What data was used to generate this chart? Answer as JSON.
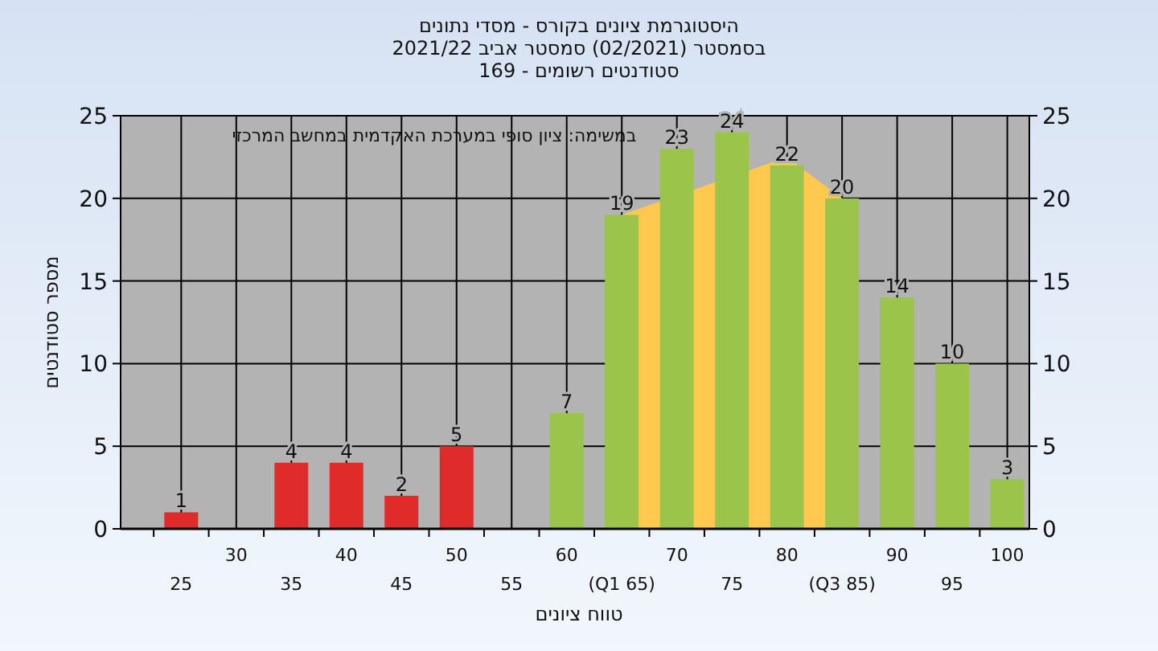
{
  "chart_data": {
    "type": "bar",
    "title": "היסטוגרמת ציונים בקורס - מסדי נתונים",
    "subtitle": "בסמסטר (02/2021) סמסטר אביב 2021/22",
    "annotations": [
      "סטודנטים רשומים - 169",
      "במשימה: ציון סופי במערכת האקדמית במחשב המרכזי"
    ],
    "xlabel": "טווח ציונים",
    "ylabel": "מספר סטודנטים",
    "categories": [
      "25",
      "30",
      "35",
      "40",
      "45",
      "50",
      "55",
      "60",
      "(Q1 65)",
      "70",
      "75",
      "80",
      "(Q3 85)",
      "90",
      "95",
      "100"
    ],
    "series": [
      {
        "type": "area",
        "color": "#ffc94f",
        "values": [
          null,
          null,
          null,
          null,
          null,
          null,
          null,
          null,
          19,
          null,
          null,
          22.5,
          20,
          null,
          null,
          null
        ]
      },
      {
        "values": [
          1,
          0,
          4,
          4,
          2,
          5,
          0,
          7,
          19,
          23,
          24,
          22,
          20,
          14,
          10,
          3
        ],
        "colors": [
          "#e02b2b",
          "#e02b2b",
          "#e02b2b",
          "#e02b2b",
          "#e02b2b",
          "#e02b2b",
          "#e02b2b",
          "#9bc44a",
          "#9bc44a",
          "#9bc44a",
          "#9bc44a",
          "#9bc44a",
          "#9bc44a",
          "#9bc44a",
          "#9bc44a",
          "#9bc44a"
        ],
        "value_labels": [
          "1",
          null,
          "4",
          "4",
          "2",
          "5",
          null,
          "7",
          "19",
          "23",
          "24",
          "22",
          "20",
          "14",
          "10",
          "3"
        ]
      }
    ],
    "ylim": [
      0,
      25
    ],
    "yticks": [
      0,
      5,
      10,
      15,
      20,
      25
    ],
    "y2lim": [
      0,
      25
    ],
    "y2ticks": [
      0,
      5,
      10,
      15,
      20,
      25
    ],
    "grid": true
  }
}
